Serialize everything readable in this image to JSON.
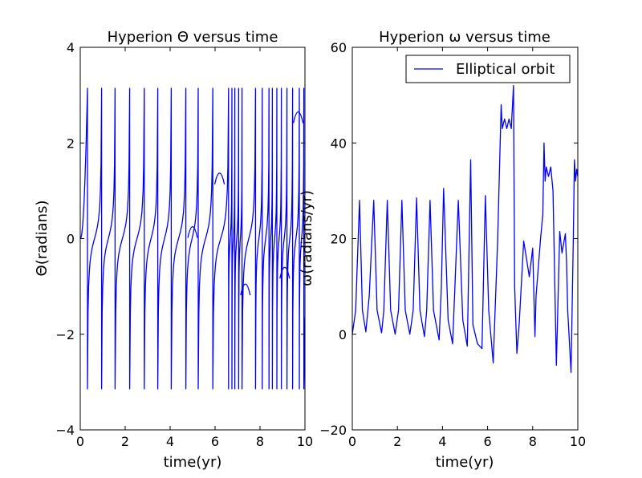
{
  "chart_data": [
    {
      "type": "line",
      "title": "Hyperion  Θ versus time",
      "xlabel": "time(yr)",
      "ylabel": "Θ(radians)",
      "xlim": [
        0,
        10
      ],
      "ylim": [
        -4,
        4
      ],
      "xticks": [
        "0",
        "2",
        "4",
        "6",
        "8",
        "10"
      ],
      "yticks": [
        "−4",
        "−2",
        "0",
        "2",
        "4"
      ],
      "xtick_values": [
        0,
        2,
        4,
        6,
        8,
        10
      ],
      "ytick_values": [
        -4,
        -2,
        0,
        2,
        4
      ],
      "color": "#0000ff",
      "wrap_times": [
        0.32,
        0.95,
        1.55,
        2.2,
        2.85,
        3.45,
        4.05,
        4.7,
        5.25,
        5.9,
        6.6,
        6.75,
        6.88,
        7.05,
        7.2,
        7.8,
        8.1,
        8.4,
        8.55,
        8.75,
        8.95,
        9.2,
        9.45,
        9.75,
        9.95
      ],
      "bumps": [
        {
          "t": 5.0,
          "theta": 0.25
        },
        {
          "t": 6.2,
          "theta": 1.37
        },
        {
          "t": 7.35,
          "theta": -0.95
        },
        {
          "t": 9.1,
          "theta": -0.6
        },
        {
          "t": 9.7,
          "theta": 2.65
        }
      ]
    },
    {
      "type": "line",
      "title": "Hyperion  ω versus time",
      "xlabel": "time(yr)",
      "ylabel": "ω(radians/yr)",
      "xlim": [
        0,
        10
      ],
      "ylim": [
        -20,
        60
      ],
      "xticks": [
        "0",
        "2",
        "4",
        "6",
        "8",
        "10"
      ],
      "yticks": [
        "−20",
        "0",
        "20",
        "40",
        "60"
      ],
      "xtick_values": [
        0,
        2,
        4,
        6,
        8,
        10
      ],
      "ytick_values": [
        -20,
        0,
        20,
        40,
        60
      ],
      "color": "#0000ff",
      "legend": "Elliptical orbit",
      "legend_position": "top-right",
      "x": [
        0,
        0.15,
        0.32,
        0.45,
        0.6,
        0.75,
        0.95,
        1.1,
        1.3,
        1.4,
        1.55,
        1.7,
        1.9,
        2.05,
        2.2,
        2.35,
        2.55,
        2.7,
        2.85,
        3.0,
        3.2,
        3.3,
        3.45,
        3.6,
        3.85,
        3.95,
        4.05,
        4.25,
        4.45,
        4.55,
        4.7,
        4.9,
        5.1,
        5.25,
        5.35,
        5.55,
        5.75,
        5.9,
        6.05,
        6.25,
        6.45,
        6.6,
        6.65,
        6.75,
        6.85,
        6.95,
        7.05,
        7.15,
        7.2,
        7.3,
        7.4,
        7.6,
        7.75,
        7.85,
        8.0,
        8.1,
        8.15,
        8.35,
        8.45,
        8.5,
        8.55,
        8.6,
        8.7,
        8.8,
        8.9,
        9.05,
        9.2,
        9.3,
        9.45,
        9.5,
        9.55,
        9.7,
        9.8,
        9.85,
        9.9,
        9.95,
        10.0
      ],
      "y": [
        0,
        5,
        28,
        5,
        0.5,
        8,
        28,
        5,
        0.3,
        5,
        28,
        5,
        0,
        5,
        28,
        5,
        0,
        5,
        28.5,
        5,
        -0.5,
        5,
        28,
        5,
        -1.2,
        10,
        30.5,
        3,
        -2,
        10,
        28,
        3,
        -2.5,
        36.5,
        2,
        -2,
        -3,
        29,
        5,
        -6,
        20,
        48,
        43,
        45,
        43,
        45,
        43,
        52,
        10,
        -4,
        2,
        19.5,
        15,
        12,
        18,
        -0.5,
        8,
        20,
        25,
        40,
        32,
        35,
        33,
        35,
        30,
        -6.5,
        21.5,
        17,
        21,
        15,
        5,
        -8,
        20,
        36.5,
        32,
        34.5,
        33
      ]
    }
  ]
}
